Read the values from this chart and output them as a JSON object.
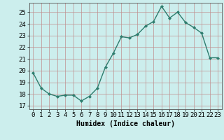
{
  "x": [
    0,
    1,
    2,
    3,
    4,
    5,
    6,
    7,
    8,
    9,
    10,
    11,
    12,
    13,
    14,
    15,
    16,
    17,
    18,
    19,
    20,
    21,
    22,
    23
  ],
  "y": [
    19.8,
    18.5,
    18.0,
    17.8,
    17.9,
    17.9,
    17.4,
    17.8,
    18.5,
    20.3,
    21.5,
    22.9,
    22.8,
    23.1,
    23.8,
    24.2,
    25.5,
    24.5,
    25.0,
    24.1,
    23.7,
    23.2,
    21.1,
    21.1
  ],
  "line_color": "#2e7d6e",
  "marker": "D",
  "marker_size": 2.0,
  "line_width": 1.0,
  "bg_color": "#cceeed",
  "grid_color_major": "#c09090",
  "xlabel": "Humidex (Indice chaleur)",
  "xlim": [
    -0.5,
    23.5
  ],
  "ylim": [
    16.7,
    25.8
  ],
  "yticks": [
    17,
    18,
    19,
    20,
    21,
    22,
    23,
    24,
    25
  ],
  "xticks": [
    0,
    1,
    2,
    3,
    4,
    5,
    6,
    7,
    8,
    9,
    10,
    11,
    12,
    13,
    14,
    15,
    16,
    17,
    18,
    19,
    20,
    21,
    22,
    23
  ],
  "xlabel_fontsize": 7,
  "tick_fontsize": 6.5
}
